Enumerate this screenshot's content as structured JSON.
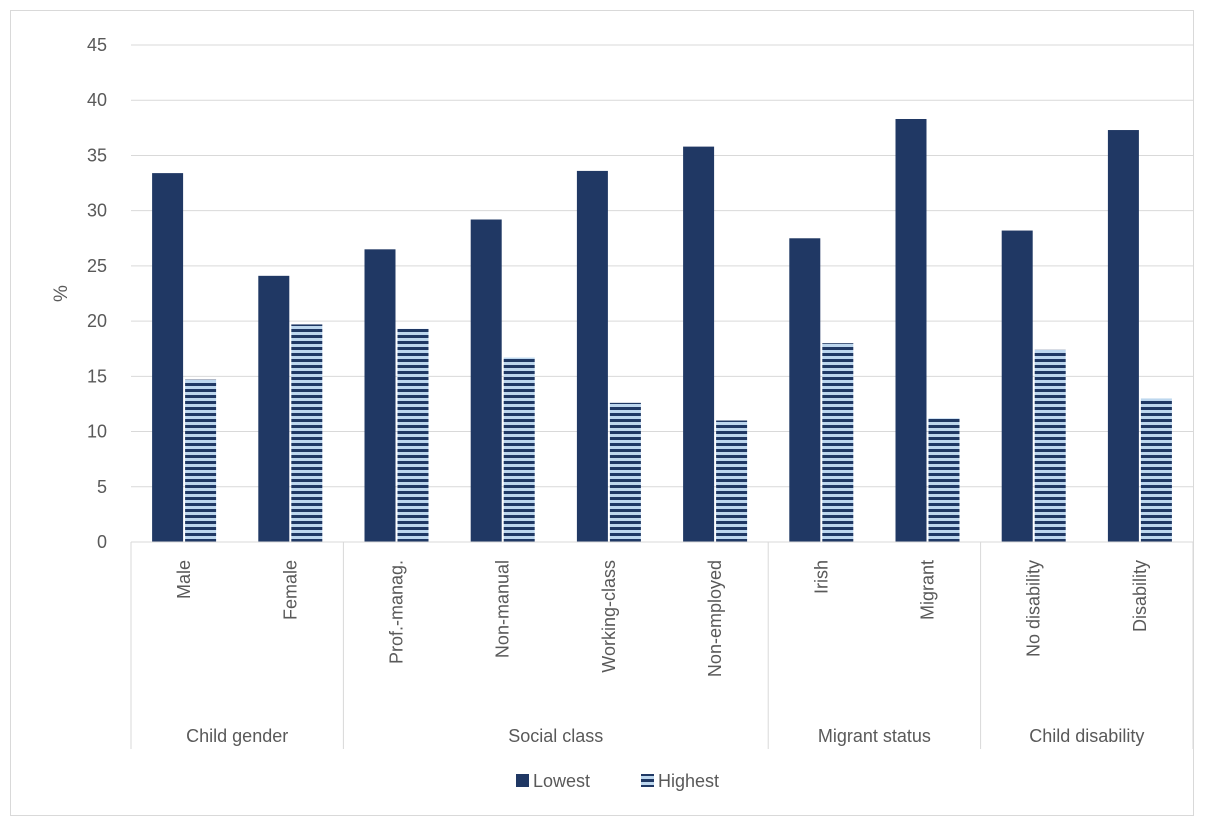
{
  "chart_data": {
    "type": "bar",
    "ylabel": "%",
    "ylim": [
      0,
      45
    ],
    "yticks": [
      0,
      5,
      10,
      15,
      20,
      25,
      30,
      35,
      40,
      45
    ],
    "grid": true,
    "legend_position": "bottom",
    "groups": [
      {
        "label": "Child gender",
        "categories": [
          "Male",
          "Female"
        ]
      },
      {
        "label": "Social class",
        "categories": [
          "Prof.-manag.",
          "Non-manual",
          "Working-class",
          "Non-employed"
        ]
      },
      {
        "label": "Migrant status",
        "categories": [
          "Irish",
          "Migrant"
        ]
      },
      {
        "label": "Child disability",
        "categories": [
          "No disability",
          "Disability"
        ]
      }
    ],
    "categories": [
      "Male",
      "Female",
      "Prof.-manag.",
      "Non-manual",
      "Working-class",
      "Non-employed",
      "Irish",
      "Migrant",
      "No disability",
      "Disability"
    ],
    "series": [
      {
        "name": "Lowest",
        "color": "#203864",
        "pattern": "solid",
        "values": [
          33.4,
          24.1,
          26.5,
          29.2,
          33.6,
          35.8,
          27.5,
          38.3,
          28.2,
          37.3
        ]
      },
      {
        "name": "Highest",
        "color": "#1f3864",
        "stripe_color": "#bdd7ee",
        "pattern": "horizontal-stripes",
        "values": [
          14.7,
          19.7,
          19.3,
          16.7,
          12.6,
          11.0,
          18.0,
          11.2,
          17.4,
          13.0
        ]
      }
    ]
  }
}
